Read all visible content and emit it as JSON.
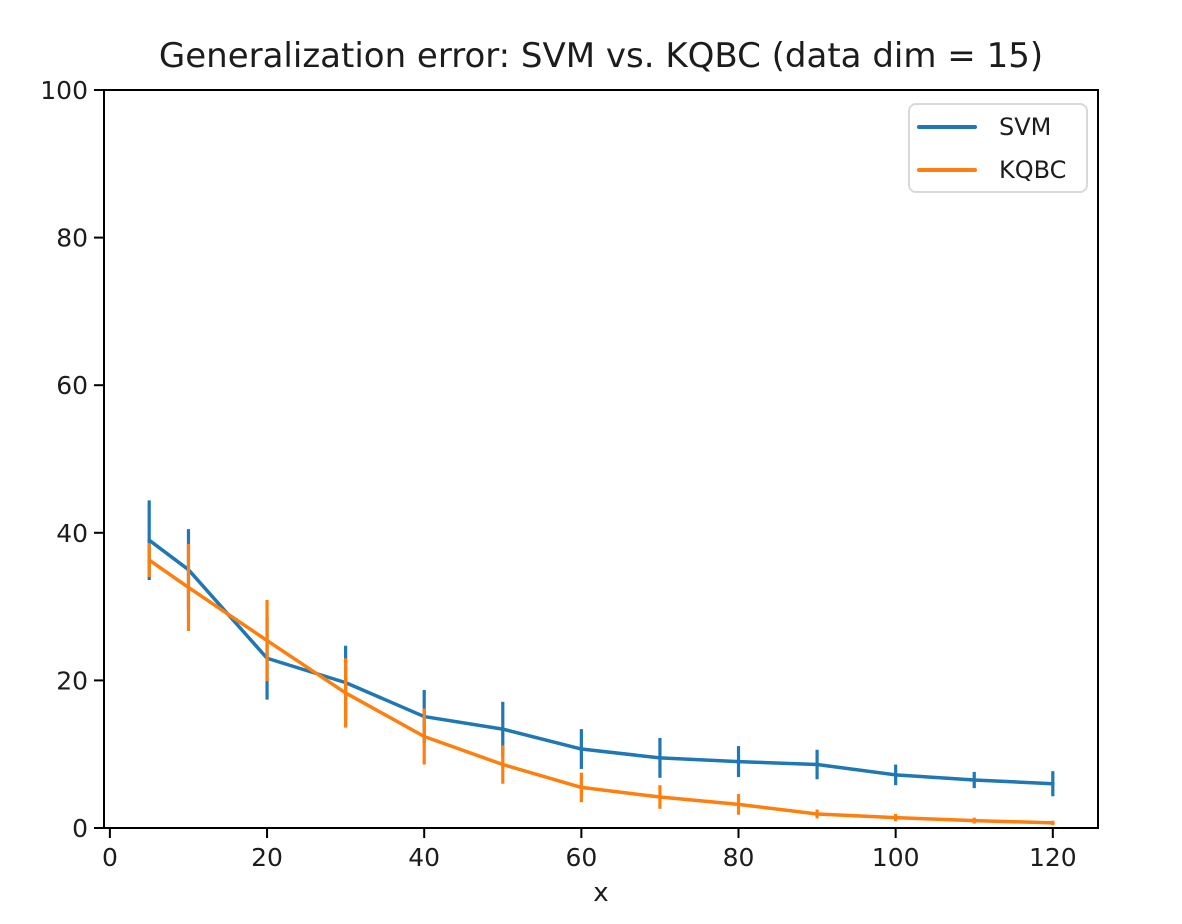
{
  "figure": {
    "background": "#ffffff",
    "text_color": "#1c1c1c"
  },
  "chart_data": {
    "type": "line",
    "title": "Generalization error: SVM vs. KQBC (data dim = 15)",
    "xlabel": "x",
    "ylabel": "",
    "grid": false,
    "legend_position": "upper right",
    "xlim": [
      -0.75,
      125.75
    ],
    "ylim": [
      0,
      100
    ],
    "x_ticks": [
      0,
      20,
      40,
      60,
      80,
      100,
      120
    ],
    "y_ticks": [
      0,
      20,
      40,
      60,
      80,
      100
    ],
    "x": [
      5,
      10,
      20,
      30,
      40,
      50,
      60,
      70,
      80,
      90,
      100,
      110,
      120
    ],
    "series": [
      {
        "name": "SVM",
        "color": "#1f77b4",
        "values": [
          39.0,
          35.0,
          23.0,
          19.7,
          15.1,
          13.4,
          10.7,
          9.5,
          9.0,
          8.6,
          7.2,
          6.5,
          6.0
        ],
        "errors": [
          5.4,
          5.5,
          5.6,
          5.0,
          3.6,
          3.7,
          2.7,
          2.7,
          2.1,
          2.0,
          1.4,
          1.1,
          1.7
        ]
      },
      {
        "name": "KQBC",
        "color": "#ff7f0e",
        "values": [
          36.3,
          32.6,
          25.4,
          18.3,
          12.4,
          8.6,
          5.5,
          4.2,
          3.2,
          1.9,
          1.4,
          1.0,
          0.7
        ],
        "errors": [
          2.3,
          5.9,
          5.5,
          4.7,
          3.8,
          2.6,
          2.0,
          1.6,
          1.4,
          0.6,
          0.5,
          0.4,
          0.3
        ]
      }
    ]
  },
  "legend": {
    "entries": [
      {
        "label": "SVM",
        "color": "#1f77b4"
      },
      {
        "label": "KQBC",
        "color": "#ff7f0e"
      }
    ]
  }
}
